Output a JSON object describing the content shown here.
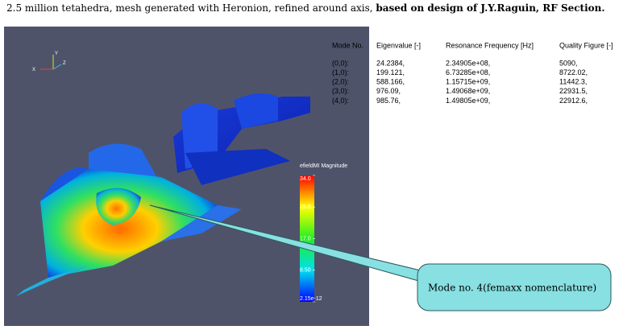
{
  "caption": {
    "text": "2.5 million tetahedra, mesh generated with Heronion, refined around axis, ",
    "bold": "based on design of J.Y.Raguin, RF Section."
  },
  "axes_labels": {
    "y": "Y",
    "z": "Z",
    "x": "X"
  },
  "colorbar": {
    "title": "efieldMI Magnitude",
    "range": [
      2.15e-12,
      34.0
    ],
    "ticks": [
      {
        "value": 34.0,
        "label": "34.0"
      },
      25.5,
      {
        "value": 17.0,
        "label": "17.0"
      },
      {
        "value": 8.5,
        "label": "8.50"
      },
      {
        "value": 2.15e-12,
        "label": "2.15e-12"
      }
    ]
  },
  "table": {
    "headers": [
      "Mode No.",
      "Eigenvalue [-]",
      "Resonance Frequency [Hz]",
      "Quality Figure [-]"
    ],
    "rows": [
      [
        "(0,0):",
        "24.2384,",
        "2.34905e+08,",
        "5090,"
      ],
      [
        "(1,0):",
        "199.121,",
        "6.73285e+08,",
        "8722.02,"
      ],
      [
        "(2,0):",
        "588.166,",
        "1.15715e+09,",
        "11442.3,"
      ],
      [
        "(3,0):",
        "976.09,",
        "1.49068e+09,",
        "22931.5,"
      ],
      [
        "(4,0):",
        "985.76,",
        "1.49805e+09,",
        "22912.6,"
      ]
    ]
  },
  "callout": "Mode no. 4(femaxx nomenclature)"
}
